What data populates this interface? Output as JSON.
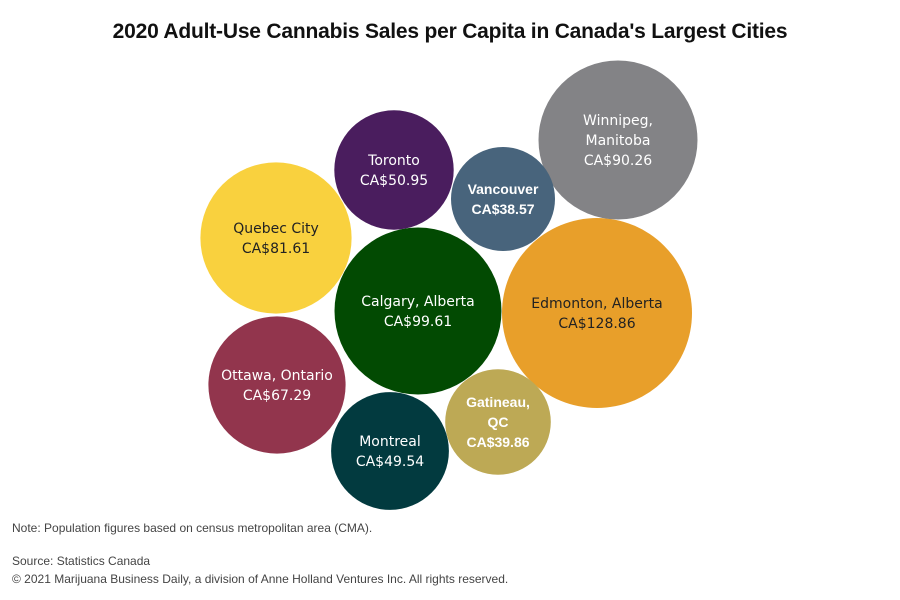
{
  "title": "2020 Adult-Use Cannabis Sales per Capita in Canada's Largest Cities",
  "note": "Note: Population figures based on census metropolitan area (CMA).",
  "source": "Source: Statistics Canada",
  "copyright": "© 2021 Marijuana Business Daily, a division of Anne Holland Ventures Inc. All rights reserved.",
  "chart_data": {
    "type": "bubble",
    "title": "2020 Adult-Use Cannabis Sales per Capita in Canada's Largest Cities",
    "unit": "CA$",
    "cities": [
      {
        "name": "Edmonton, Alberta",
        "lines": [
          "Edmonton, Alberta"
        ],
        "value": 128.86,
        "label": "CA$128.86",
        "color": "#E89F2A",
        "text_color": "#222222",
        "bold": false
      },
      {
        "name": "Calgary, Alberta",
        "lines": [
          "Calgary, Alberta"
        ],
        "value": 99.61,
        "label": "CA$99.61",
        "color": "#024A02",
        "text_color": "#ffffff",
        "bold": false
      },
      {
        "name": "Winnipeg, Manitoba",
        "lines": [
          "Winnipeg,",
          "Manitoba"
        ],
        "value": 90.26,
        "label": "CA$90.26",
        "color": "#838386",
        "text_color": "#ffffff",
        "bold": false
      },
      {
        "name": "Quebec City",
        "lines": [
          "Quebec City"
        ],
        "value": 81.61,
        "label": "CA$81.61",
        "color": "#F9D13E",
        "text_color": "#222222",
        "bold": false
      },
      {
        "name": "Ottawa, Ontario",
        "lines": [
          "Ottawa, Ontario"
        ],
        "value": 67.29,
        "label": "CA$67.29",
        "color": "#92354D",
        "text_color": "#ffffff",
        "bold": false
      },
      {
        "name": "Toronto",
        "lines": [
          "Toronto"
        ],
        "value": 50.95,
        "label": "CA$50.95",
        "color": "#4A1D5E",
        "text_color": "#ffffff",
        "bold": false
      },
      {
        "name": "Montreal",
        "lines": [
          "Montreal"
        ],
        "value": 49.54,
        "label": "CA$49.54",
        "color": "#023A3F",
        "text_color": "#ffffff",
        "bold": false
      },
      {
        "name": "Gatineau, QC",
        "lines": [
          "Gatineau,",
          "QC"
        ],
        "value": 39.86,
        "label": "CA$39.86",
        "color": "#BDA955",
        "text_color": "#ffffff",
        "bold": true
      },
      {
        "name": "Vancouver",
        "lines": [
          "Vancouver"
        ],
        "value": 38.57,
        "label": "CA$38.57",
        "color": "#48647C",
        "text_color": "#ffffff",
        "bold": true
      }
    ]
  }
}
